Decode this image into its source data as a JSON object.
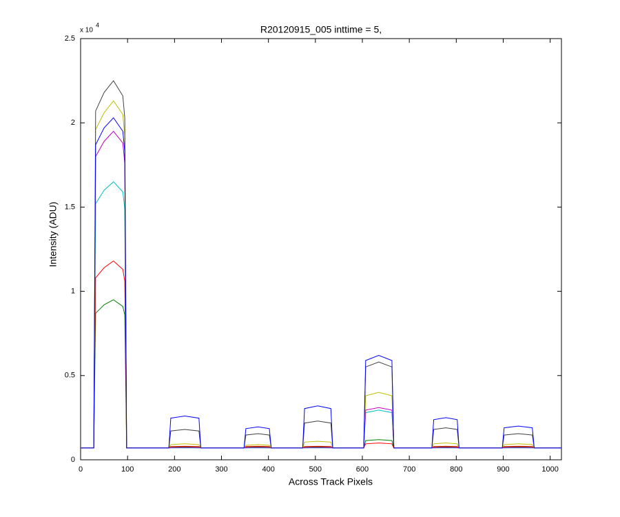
{
  "chart_data": {
    "type": "line",
    "title": "R20120915_005 inttime = 5,",
    "x_label": "Across Track Pixels",
    "y_label": "Intensity (ADU)",
    "y_exponent": {
      "base": "x 10",
      "power": "4"
    },
    "xlim": [
      0,
      1024
    ],
    "xticks": [
      0,
      100,
      200,
      300,
      400,
      500,
      600,
      700,
      800,
      900,
      1000
    ],
    "ylim": [
      0,
      25000
    ],
    "yticks": [
      0,
      {
        "value": 5000,
        "label": "0.5"
      },
      {
        "value": 10000,
        "label": "1"
      },
      {
        "value": 15000,
        "label": "1.5"
      },
      {
        "value": 20000,
        "label": "2"
      },
      {
        "value": 25000,
        "label": "2.5"
      }
    ],
    "grid": false,
    "x": [
      0,
      28,
      32,
      50,
      70,
      90,
      94,
      98,
      188,
      192,
      222,
      252,
      256,
      348,
      352,
      378,
      402,
      406,
      473,
      477,
      505,
      533,
      537,
      603,
      607,
      635,
      663,
      667,
      748,
      752,
      778,
      802,
      806,
      898,
      902,
      932,
      962,
      966,
      1024
    ],
    "series": [
      {
        "color": "#008000",
        "values": [
          700,
          700,
          8700,
          9200,
          9500,
          9100,
          8600,
          700,
          700,
          750,
          760,
          750,
          700,
          700,
          750,
          760,
          750,
          700,
          700,
          750,
          760,
          750,
          700,
          700,
          1140,
          1200,
          1140,
          700,
          700,
          750,
          760,
          750,
          700,
          700,
          750,
          760,
          750,
          700,
          700
        ]
      },
      {
        "color": "#ff0000",
        "values": [
          700,
          700,
          10800,
          11400,
          11800,
          11300,
          10600,
          700,
          700,
          790,
          800,
          790,
          700,
          700,
          790,
          800,
          790,
          700,
          700,
          790,
          800,
          790,
          700,
          700,
          950,
          1000,
          950,
          700,
          700,
          790,
          800,
          790,
          700,
          700,
          790,
          800,
          790,
          700,
          700
        ]
      },
      {
        "color": "#00bfbf",
        "values": [
          700,
          700,
          15200,
          16000,
          16500,
          15900,
          14900,
          700,
          700,
          700,
          710,
          700,
          700,
          700,
          700,
          710,
          700,
          700,
          700,
          700,
          710,
          700,
          700,
          700,
          2800,
          2950,
          2800,
          700,
          700,
          700,
          710,
          700,
          700,
          700,
          700,
          710,
          700,
          700,
          700
        ]
      },
      {
        "color": "#bf00bf",
        "values": [
          700,
          700,
          18000,
          18900,
          19500,
          18800,
          17600,
          700,
          700,
          720,
          730,
          720,
          700,
          700,
          720,
          730,
          720,
          700,
          700,
          720,
          730,
          720,
          700,
          700,
          2950,
          3100,
          2950,
          700,
          700,
          720,
          730,
          720,
          700,
          700,
          720,
          730,
          720,
          700,
          700
        ]
      },
      {
        "color": "#bfbf00",
        "values": [
          700,
          700,
          19600,
          20600,
          21300,
          20500,
          19200,
          700,
          700,
          900,
          950,
          900,
          700,
          700,
          860,
          900,
          860,
          700,
          700,
          1050,
          1100,
          1050,
          700,
          700,
          3800,
          4000,
          3800,
          700,
          700,
          950,
          1000,
          950,
          700,
          700,
          900,
          950,
          900,
          700,
          700
        ]
      },
      {
        "color": "#404040",
        "values": [
          700,
          700,
          20700,
          21800,
          22500,
          21600,
          20300,
          700,
          700,
          1710,
          1800,
          1710,
          700,
          700,
          1470,
          1550,
          1470,
          700,
          700,
          2180,
          2300,
          2180,
          700,
          700,
          5510,
          5800,
          5510,
          700,
          700,
          1800,
          1900,
          1800,
          700,
          700,
          1470,
          1550,
          1470,
          700,
          700
        ]
      },
      {
        "color": "#0000ff",
        "values": [
          700,
          700,
          18700,
          19700,
          20300,
          19500,
          18300,
          700,
          700,
          2470,
          2600,
          2470,
          700,
          700,
          1850,
          1950,
          1850,
          700,
          700,
          3040,
          3200,
          3040,
          700,
          700,
          5890,
          6200,
          5890,
          700,
          700,
          2380,
          2500,
          2380,
          700,
          700,
          1900,
          2000,
          1900,
          700,
          700
        ]
      }
    ]
  }
}
